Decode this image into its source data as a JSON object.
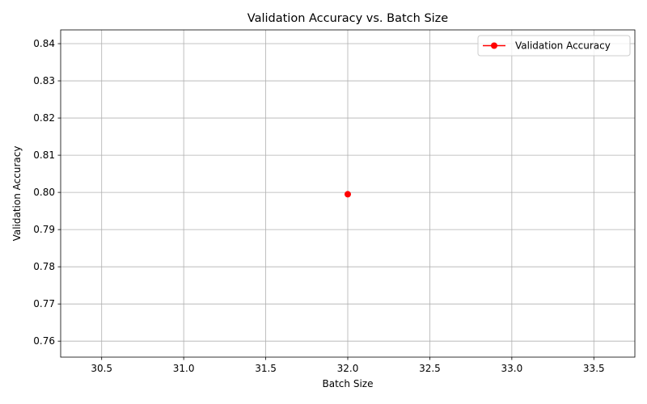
{
  "chart_data": {
    "type": "line",
    "title": "Validation Accuracy vs. Batch Size",
    "xlabel": "Batch Size",
    "ylabel": "Validation Accuracy",
    "xlim": [
      30.25,
      33.75
    ],
    "ylim": [
      0.7557,
      0.8437
    ],
    "x_ticks": [
      30.5,
      31.0,
      31.5,
      32.0,
      32.5,
      33.0,
      33.5
    ],
    "y_ticks": [
      0.76,
      0.77,
      0.78,
      0.79,
      0.8,
      0.81,
      0.82,
      0.83,
      0.84
    ],
    "x_tick_labels": [
      "30.5",
      "31.0",
      "31.5",
      "32.0",
      "32.5",
      "33.0",
      "33.5"
    ],
    "y_tick_labels": [
      "0.76",
      "0.77",
      "0.78",
      "0.79",
      "0.80",
      "0.81",
      "0.82",
      "0.83",
      "0.84"
    ],
    "grid": true,
    "legend_position": "top-right",
    "series": [
      {
        "name": "Validation Accuracy",
        "color": "#ff0000",
        "marker": "circle",
        "x": [
          32
        ],
        "y": [
          0.7995
        ]
      }
    ]
  }
}
